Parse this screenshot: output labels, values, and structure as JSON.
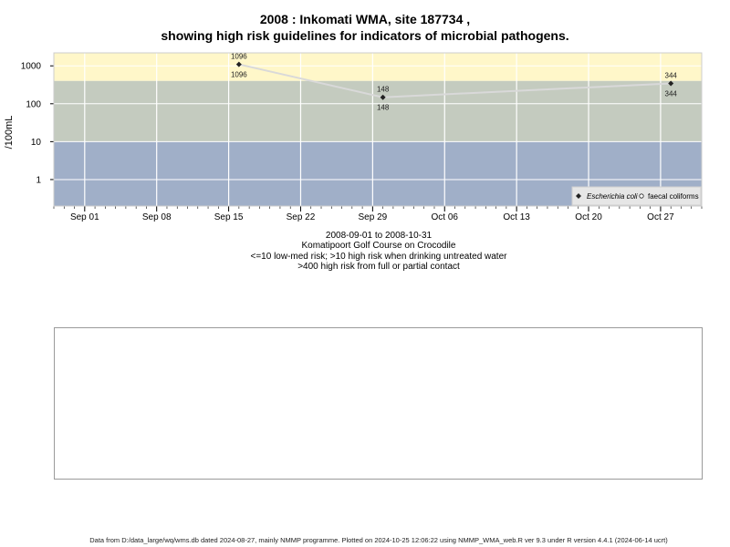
{
  "title_line1": "2008 : Inkomati WMA, site 187734 ,",
  "title_line2": "showing high risk guidelines for indicators of microbial pathogens.",
  "subtitle": {
    "date_range": "2008-09-01 to 2008-10-31",
    "site_name": "Komatipoort Golf Course on Crocodile",
    "risk_note_1": "<=10 low-med risk; >10 high risk when drinking untreated water",
    "risk_note_2": ">400 high risk from full or partial contact"
  },
  "footer": "Data from D:/data_large/wq/wms.db dated 2024-08-27, mainly NMMP programme. Plotted on 2024-10-25 12:06:22 using NMMP_WMA_web.R ver 9.3 under R version 4.4.1 (2024-06-14 ucrt)",
  "colors": {
    "band_high_contact": "#fff7c9",
    "band_high_drinking": "#c4cbbf",
    "band_low": "#a0afc8",
    "grid": "#ffffff",
    "line": "#d9d9d9",
    "point": "#222222"
  },
  "chart_data": {
    "type": "line",
    "ylabel": "/100mL",
    "yscale": "log",
    "yticks": [
      1,
      10,
      100,
      1000
    ],
    "ytick_labels": [
      "1",
      "10",
      "100",
      "1000"
    ],
    "ylim": [
      0.2,
      2200
    ],
    "xlim": [
      "2008-08-29",
      "2008-10-31"
    ],
    "xticks": [
      "2008-09-01",
      "2008-09-08",
      "2008-09-15",
      "2008-09-22",
      "2008-09-29",
      "2008-10-06",
      "2008-10-13",
      "2008-10-20",
      "2008-10-27"
    ],
    "xtick_labels": [
      "Sep 01",
      "Sep 08",
      "Sep 15",
      "Sep 22",
      "Sep 29",
      "Oct 06",
      "Oct 13",
      "Oct 20",
      "Oct 27"
    ],
    "bands": [
      {
        "from": 400,
        "to": 2200,
        "color_key": "band_high_contact"
      },
      {
        "from": 10,
        "to": 400,
        "color_key": "band_high_drinking"
      },
      {
        "from": 0.2,
        "to": 10,
        "color_key": "band_low"
      }
    ],
    "series": [
      {
        "name": "Escherichia coli",
        "x": [
          "2008-09-16",
          "2008-09-30",
          "2008-10-28"
        ],
        "y": [
          1096,
          148,
          344
        ],
        "labels": [
          "1096",
          "148",
          "344"
        ]
      }
    ],
    "legend": {
      "placement": "bottom-right",
      "entries": [
        "Escherichia coli",
        "faecal coliforms"
      ]
    },
    "grid": true
  }
}
